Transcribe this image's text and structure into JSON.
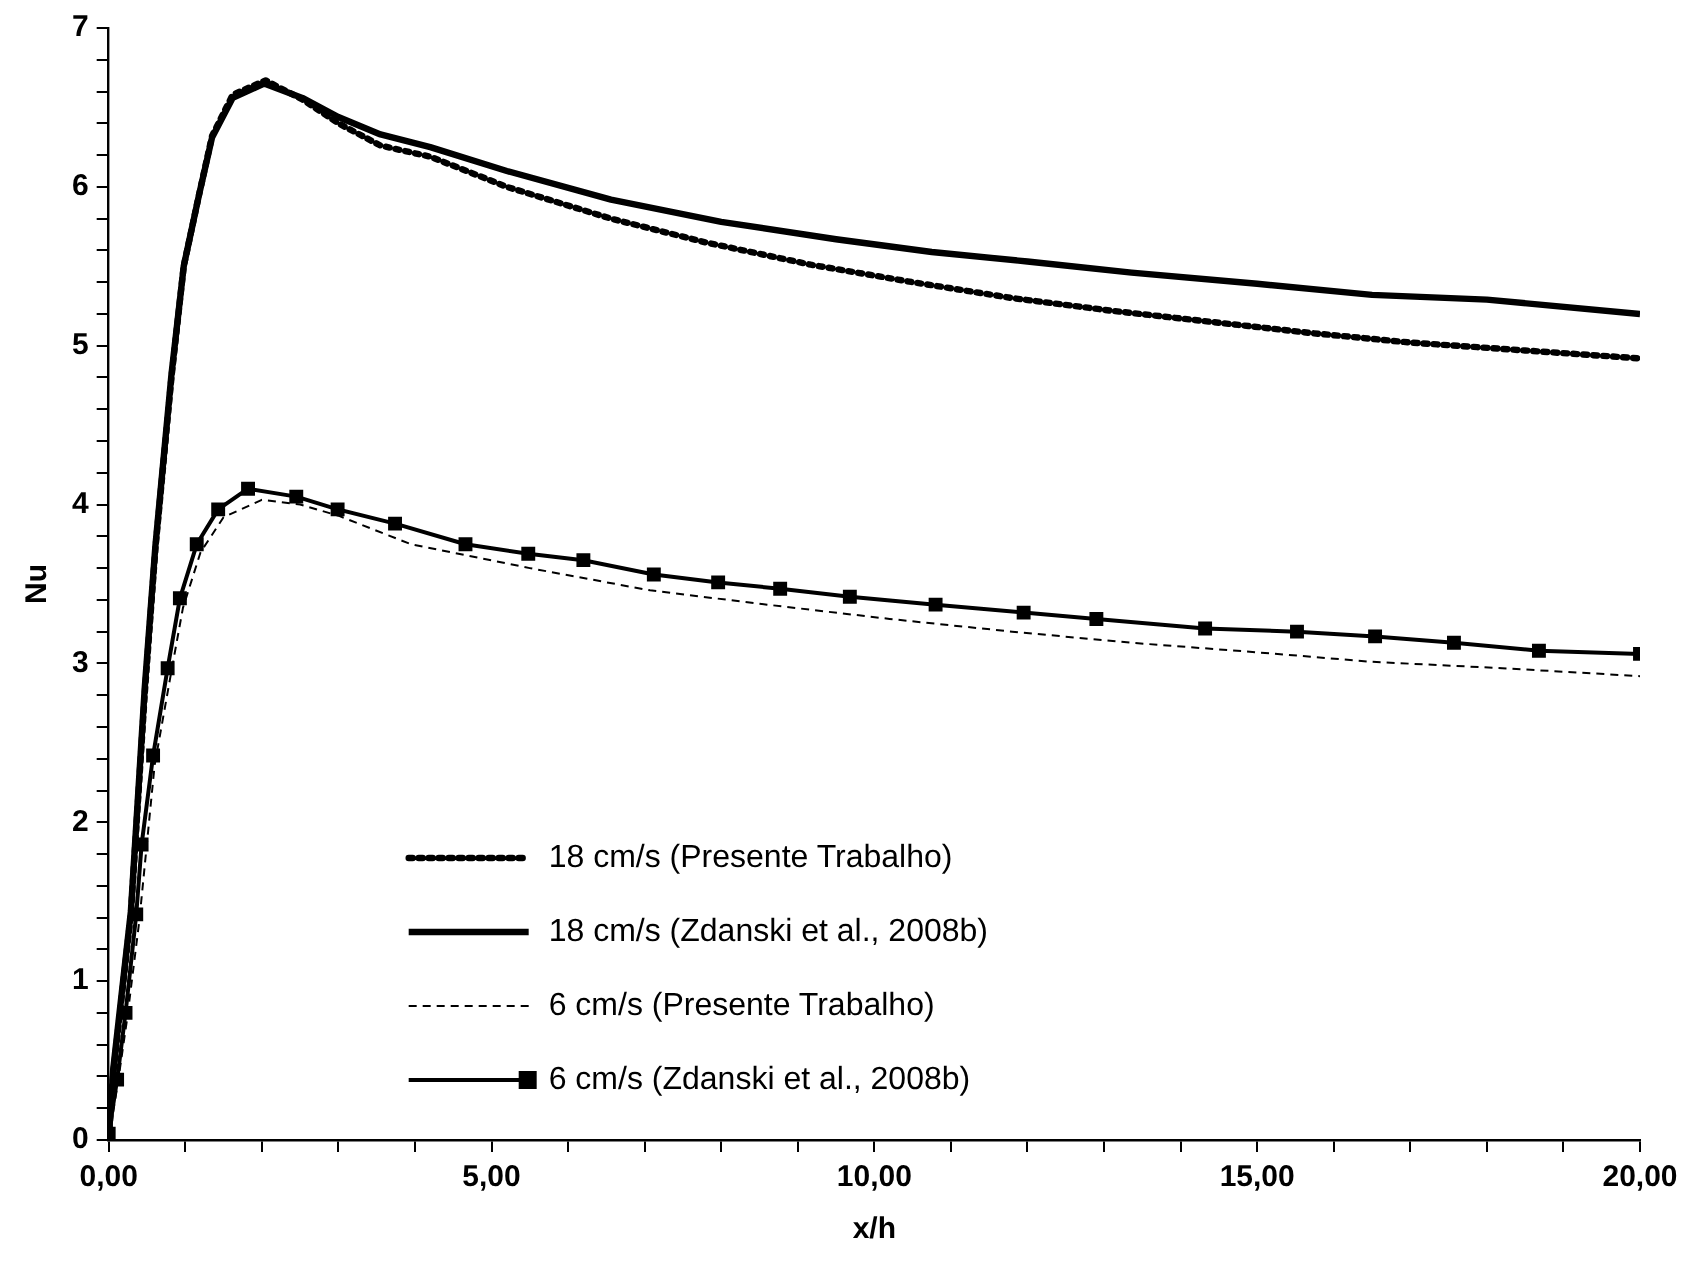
{
  "chart_data": {
    "type": "line",
    "xlabel": "x/h",
    "ylabel": "Nu",
    "legend": "bottom left",
    "grid": false,
    "xlim": [
      0,
      20
    ],
    "ylim": [
      0,
      7
    ],
    "xticks": [
      {
        "value": 0,
        "label": "0,00"
      },
      {
        "value": 1,
        "label": null
      },
      {
        "value": 2,
        "label": null
      },
      {
        "value": 3,
        "label": null
      },
      {
        "value": 4,
        "label": null
      },
      {
        "value": 5,
        "label": "5,00"
      },
      {
        "value": 6,
        "label": null
      },
      {
        "value": 7,
        "label": null
      },
      {
        "value": 8,
        "label": null
      },
      {
        "value": 9,
        "label": null
      },
      {
        "value": 10,
        "label": "10,00"
      },
      {
        "value": 11,
        "label": null
      },
      {
        "value": 12,
        "label": null
      },
      {
        "value": 13,
        "label": null
      },
      {
        "value": 14,
        "label": null
      },
      {
        "value": 15,
        "label": "15,00"
      },
      {
        "value": 16,
        "label": null
      },
      {
        "value": 17,
        "label": null
      },
      {
        "value": 18,
        "label": null
      },
      {
        "value": 19,
        "label": null
      },
      {
        "value": 20,
        "label": "20,00"
      }
    ],
    "yticks": [
      0,
      {
        "value": 0.2,
        "label": null
      },
      {
        "value": 0.4,
        "label": null
      },
      {
        "value": 0.6,
        "label": null
      },
      {
        "value": 0.8,
        "label": null
      },
      1,
      {
        "value": 1.2,
        "label": null
      },
      {
        "value": 1.4,
        "label": null
      },
      {
        "value": 1.6,
        "label": null
      },
      {
        "value": 1.8,
        "label": null
      },
      2,
      {
        "value": 2.2,
        "label": null
      },
      {
        "value": 2.4,
        "label": null
      },
      {
        "value": 2.6,
        "label": null
      },
      {
        "value": 2.8,
        "label": null
      },
      3,
      {
        "value": 3.2,
        "label": null
      },
      {
        "value": 3.4,
        "label": null
      },
      {
        "value": 3.6,
        "label": null
      },
      {
        "value": 3.8,
        "label": null
      },
      4,
      {
        "value": 4.2,
        "label": null
      },
      {
        "value": 4.4,
        "label": null
      },
      {
        "value": 4.6,
        "label": null
      },
      {
        "value": 4.8,
        "label": null
      },
      5,
      {
        "value": 5.2,
        "label": null
      },
      {
        "value": 5.4,
        "label": null
      },
      {
        "value": 5.6,
        "label": null
      },
      {
        "value": 5.8,
        "label": null
      },
      6,
      {
        "value": 6.2,
        "label": null
      },
      {
        "value": 6.4,
        "label": null
      },
      {
        "value": 6.6,
        "label": null
      },
      {
        "value": 6.8,
        "label": null
      },
      7
    ],
    "series": [
      {
        "name": "18 cm/s (Presente Trabalho)",
        "color": "#000000",
        "line_style": "dotted",
        "marker": "none",
        "x": [
          0,
          0.06,
          0.29,
          0.47,
          0.61,
          0.82,
          0.98,
          1.18,
          1.35,
          1.62,
          2.05,
          2.53,
          3.0,
          3.55,
          4.2,
          5.2,
          6.56,
          7.8,
          9.17,
          10.5,
          11.8,
          13.1,
          14.4,
          15.7,
          17.0,
          18.5,
          20
        ],
        "values": [
          0,
          0.42,
          1.42,
          2.8,
          3.72,
          4.8,
          5.5,
          5.95,
          6.32,
          6.58,
          6.67,
          6.55,
          6.4,
          6.26,
          6.19,
          6.0,
          5.8,
          5.65,
          5.51,
          5.4,
          5.3,
          5.22,
          5.15,
          5.08,
          5.02,
          4.97,
          4.92
        ]
      },
      {
        "name": "18 cm/s (Zdanski et al., 2008b)",
        "color": "#000000",
        "line_style": "solid",
        "marker": "none",
        "x": [
          0,
          0.06,
          0.29,
          0.47,
          0.61,
          0.82,
          0.98,
          1.18,
          1.35,
          1.62,
          2.03,
          2.53,
          3.0,
          3.55,
          4.2,
          5.2,
          6.56,
          8.0,
          9.5,
          10.75,
          12.0,
          13.36,
          15.0,
          16.5,
          18.0,
          20
        ],
        "values": [
          0,
          0.45,
          1.44,
          2.84,
          3.74,
          4.82,
          5.5,
          5.95,
          6.31,
          6.56,
          6.65,
          6.56,
          6.44,
          6.33,
          6.25,
          6.1,
          5.92,
          5.78,
          5.67,
          5.59,
          5.53,
          5.46,
          5.39,
          5.32,
          5.29,
          5.2
        ]
      },
      {
        "name": "6 cm/s (Presente Trabalho)",
        "color": "#000000",
        "line_style": "dashed",
        "marker": "none",
        "x": [
          0,
          0.12,
          0.24,
          0.4,
          0.6,
          0.8,
          0.97,
          1.2,
          1.5,
          2.0,
          2.5,
          3.0,
          3.95,
          5.5,
          7.07,
          8.6,
          10.2,
          11.8,
          13.36,
          15.0,
          16.5,
          18.2,
          20
        ],
        "values": [
          0,
          0.36,
          0.76,
          1.38,
          2.36,
          2.9,
          3.35,
          3.7,
          3.92,
          4.03,
          4.0,
          3.93,
          3.75,
          3.6,
          3.46,
          3.37,
          3.28,
          3.2,
          3.13,
          3.07,
          3.01,
          2.97,
          2.92
        ]
      },
      {
        "name": "6 cm/s (Zdanski et al., 2008b)",
        "color": "#000000",
        "line_style": "solid",
        "marker": "square",
        "x": [
          0,
          0.11,
          0.22,
          0.36,
          0.43,
          0.58,
          0.77,
          0.93,
          1.15,
          1.43,
          1.82,
          2.45,
          2.99,
          3.74,
          4.66,
          5.48,
          6.2,
          7.12,
          7.96,
          8.77,
          9.68,
          10.8,
          11.95,
          12.9,
          14.32,
          15.52,
          16.54,
          17.57,
          18.68,
          20
        ],
        "values": [
          0.04,
          0.38,
          0.8,
          1.42,
          1.86,
          2.42,
          2.97,
          3.41,
          3.75,
          3.97,
          4.1,
          4.05,
          3.97,
          3.88,
          3.75,
          3.69,
          3.65,
          3.56,
          3.51,
          3.47,
          3.42,
          3.37,
          3.32,
          3.28,
          3.22,
          3.2,
          3.17,
          3.13,
          3.08,
          3.06
        ]
      }
    ]
  }
}
